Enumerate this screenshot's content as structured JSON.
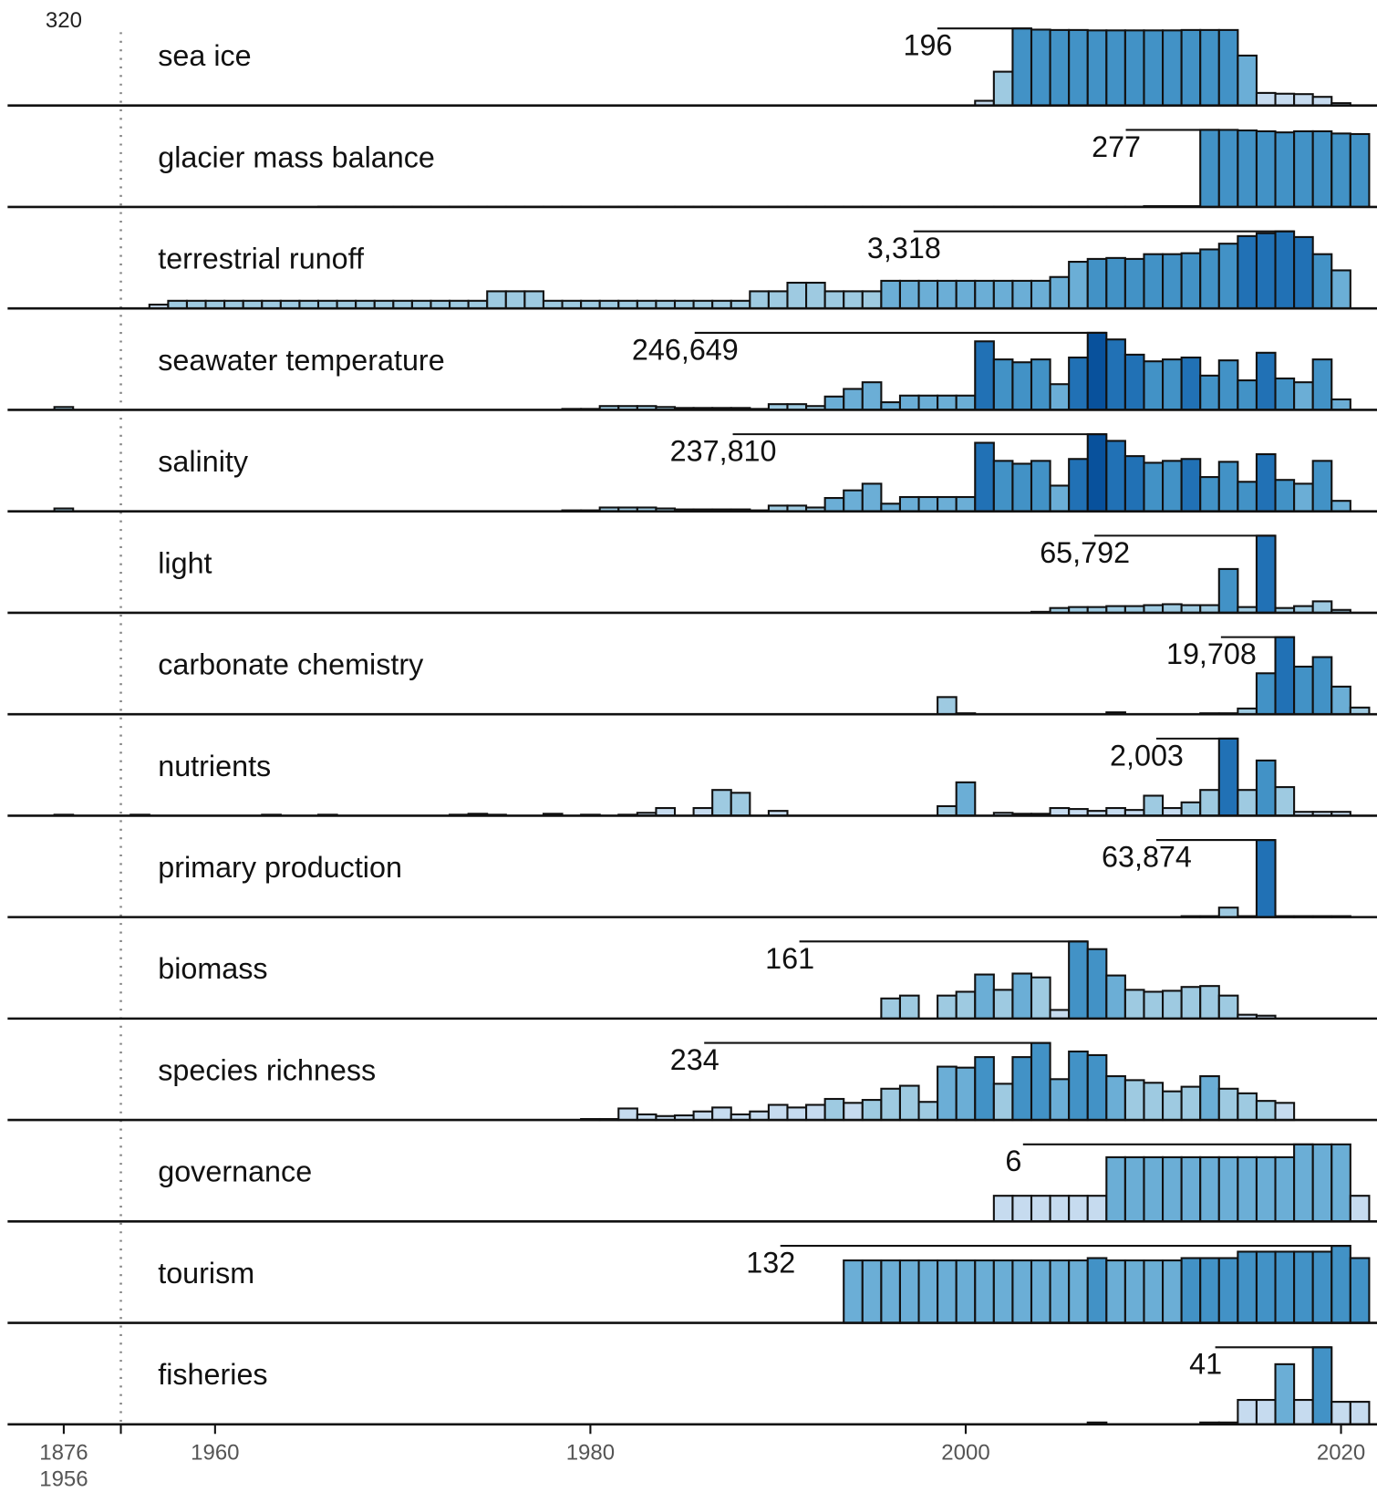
{
  "chart_data": {
    "type": "bar",
    "break_note": 320,
    "break_labels": [
      1876,
      1956
    ],
    "xticks": [
      1960,
      1980,
      2000,
      2020
    ],
    "palette": [
      "#c6dbef",
      "#9ecae1",
      "#6baed6",
      "#4292c6",
      "#2171b5",
      "#08519c",
      "#08306b"
    ],
    "panels": [
      {
        "name": "sea ice",
        "ymax": 196,
        "x": [
          2001,
          2002,
          2003,
          2004,
          2005,
          2006,
          2007,
          2008,
          2009,
          2010,
          2011,
          2012,
          2013,
          2014,
          2015,
          2016,
          2017,
          2018,
          2019,
          2020
        ],
        "values": [
          12,
          86,
          196,
          193,
          192,
          192,
          191,
          191,
          191,
          191,
          191,
          192,
          192,
          192,
          127,
          32,
          30,
          29,
          22,
          6
        ]
      },
      {
        "name": "glacier mass balance",
        "ymax": 277,
        "x": [
          1966,
          1967,
          1968,
          1969,
          1970,
          1971,
          1972,
          1973,
          1974,
          1975,
          1976,
          1977,
          1978,
          1979,
          1980,
          1981,
          1982,
          1983,
          1984,
          1985,
          1986,
          1987,
          1988,
          1989,
          1990,
          1991,
          1992,
          1993,
          1994,
          1995,
          1996,
          1997,
          1998,
          1999,
          2000,
          2001,
          2002,
          2003,
          2004,
          2005,
          2006,
          2007,
          2008,
          2009,
          2010,
          2011,
          2012,
          2013,
          2014,
          2015,
          2016,
          2017,
          2018,
          2019,
          2020,
          2021
        ],
        "values": [
          1,
          1,
          1,
          1,
          1,
          1,
          1,
          1,
          1,
          1,
          1,
          1,
          1,
          1,
          1,
          1,
          1,
          1,
          1,
          1,
          1,
          1,
          1,
          1,
          1,
          1,
          1,
          1,
          1,
          1,
          1,
          1,
          1,
          1,
          1,
          1,
          1,
          1,
          1,
          1,
          1,
          1,
          1,
          1,
          3,
          3,
          3,
          277,
          277,
          275,
          272,
          268,
          272,
          272,
          264,
          262
        ]
      },
      {
        "name": "terrestrial runoff",
        "ymax": {
          "value": 3318,
          "label": "3,318"
        },
        "x": [
          1957,
          1958,
          1959,
          1960,
          1961,
          1962,
          1963,
          1964,
          1965,
          1966,
          1967,
          1968,
          1969,
          1970,
          1971,
          1972,
          1973,
          1974,
          1975,
          1976,
          1977,
          1978,
          1979,
          1980,
          1981,
          1982,
          1983,
          1984,
          1985,
          1986,
          1987,
          1988,
          1989,
          1990,
          1991,
          1992,
          1993,
          1994,
          1995,
          1996,
          1997,
          1998,
          1999,
          2000,
          2001,
          2002,
          2003,
          2004,
          2005,
          2006,
          2007,
          2008,
          2009,
          2010,
          2011,
          2012,
          2013,
          2014,
          2015,
          2016,
          2017,
          2018,
          2019,
          2020
        ],
        "values": [
          164,
          328,
          328,
          328,
          328,
          328,
          328,
          328,
          328,
          328,
          328,
          328,
          328,
          328,
          328,
          328,
          328,
          328,
          737,
          737,
          737,
          328,
          328,
          328,
          328,
          328,
          328,
          328,
          328,
          328,
          328,
          328,
          737,
          737,
          1106,
          1106,
          737,
          737,
          737,
          1188,
          1188,
          1188,
          1188,
          1188,
          1188,
          1188,
          1188,
          1188,
          1352,
          2007,
          2130,
          2171,
          2130,
          2335,
          2335,
          2376,
          2540,
          2786,
          3113,
          3236,
          3318,
          3072,
          2335,
          1638
        ]
      },
      {
        "name": "seawater temperature",
        "ymax": {
          "value": 246649,
          "label": "246,649"
        },
        "x": [
          1876,
          1979,
          1980,
          1981,
          1982,
          1983,
          1984,
          1985,
          1986,
          1987,
          1988,
          1989,
          1990,
          1991,
          1992,
          1993,
          1994,
          1995,
          1996,
          1997,
          1998,
          1999,
          2000,
          2001,
          2002,
          2003,
          2004,
          2005,
          2006,
          2007,
          2008,
          2009,
          2010,
          2011,
          2012,
          2013,
          2014,
          2015,
          2016,
          2017,
          2018,
          2019,
          2020
        ],
        "values": [
          9135,
          3045,
          3045,
          12180,
          12180,
          12180,
          9135,
          6090,
          6090,
          6090,
          6090,
          3045,
          18270,
          18270,
          12180,
          42630,
          66990,
          88305,
          24360,
          45675,
          45675,
          45675,
          45675,
          219240,
          161385,
          152250,
          161385,
          82215,
          167475,
          246649,
          225330,
          176610,
          155295,
          161385,
          167475,
          109620,
          158340,
          94395,
          182700,
          100485,
          88305,
          161385,
          33495
        ]
      },
      {
        "name": "salinity",
        "ymax": {
          "value": 237810,
          "label": "237,810"
        },
        "x": [
          1876,
          1979,
          1980,
          1981,
          1982,
          1983,
          1984,
          1985,
          1986,
          1987,
          1988,
          1989,
          1990,
          1991,
          1992,
          1993,
          1994,
          1995,
          1996,
          1997,
          1998,
          1999,
          2000,
          2001,
          2002,
          2003,
          2004,
          2005,
          2006,
          2007,
          2008,
          2009,
          2010,
          2011,
          2012,
          2013,
          2014,
          2015,
          2016,
          2017,
          2018,
          2019,
          2020
        ],
        "values": [
          8808,
          2936,
          2936,
          11744,
          11744,
          11744,
          8808,
          5872,
          5872,
          5872,
          5872,
          2936,
          17616,
          17616,
          11744,
          41104,
          64592,
          85144,
          23488,
          44040,
          44040,
          44040,
          44040,
          211392,
          155608,
          146800,
          155608,
          79272,
          161480,
          237810,
          217264,
          170288,
          149736,
          155608,
          161480,
          105696,
          152672,
          91016,
          176160,
          96888,
          85144,
          155608,
          32296
        ]
      },
      {
        "name": "light",
        "ymax": {
          "value": 65792,
          "label": "65,792"
        },
        "x": [
          2004,
          2005,
          2006,
          2007,
          2008,
          2009,
          2010,
          2011,
          2012,
          2013,
          2014,
          2015,
          2016,
          2017,
          2018,
          2019,
          2020
        ],
        "values": [
          812,
          4060,
          4872,
          4872,
          5684,
          5684,
          6496,
          7308,
          6496,
          6496,
          37352,
          4872,
          65792,
          4060,
          5684,
          9744,
          2436
        ]
      },
      {
        "name": "carbonate chemistry",
        "ymax": {
          "value": 19708,
          "label": "19,708"
        },
        "x": [
          1999,
          2000,
          2001,
          2002,
          2003,
          2004,
          2005,
          2006,
          2007,
          2008,
          2009,
          2010,
          2011,
          2012,
          2013,
          2014,
          2015,
          2016,
          2017,
          2018,
          2019,
          2020,
          2021
        ],
        "values": [
          4380,
          243,
          0,
          0,
          0,
          0,
          0,
          0,
          0,
          487,
          0,
          0,
          0,
          0,
          243,
          243,
          1460,
          10462,
          19708,
          12165,
          14598,
          7056,
          1703
        ]
      },
      {
        "name": "nutrients",
        "ymax": {
          "value": 2003,
          "label": "2,003"
        },
        "x": [
          1876,
          1956,
          1963,
          1966,
          1973,
          1974,
          1975,
          1978,
          1980,
          1982,
          1983,
          1984,
          1986,
          1987,
          1988,
          1990,
          1999,
          2000,
          2002,
          2003,
          2004,
          2005,
          2006,
          2007,
          2008,
          2009,
          2010,
          2011,
          2012,
          2013,
          2014,
          2015,
          2016,
          2017,
          2018,
          2019,
          2020
        ],
        "values": [
          25,
          25,
          25,
          25,
          25,
          49,
          25,
          49,
          25,
          25,
          74,
          198,
          198,
          668,
          594,
          124,
          247,
          866,
          74,
          49,
          49,
          198,
          173,
          124,
          198,
          148,
          519,
          198,
          346,
          668,
          2003,
          668,
          1434,
          742,
          99,
          99,
          99
        ]
      },
      {
        "name": "primary production",
        "ymax": {
          "value": 63874,
          "label": "63,874"
        },
        "x": [
          2012,
          2013,
          2014,
          2015,
          2016,
          2017,
          2018,
          2019,
          2020
        ],
        "values": [
          789,
          789,
          7886,
          789,
          63874,
          789,
          789,
          789,
          789
        ]
      },
      {
        "name": "biomass",
        "ymax": 161,
        "x": [
          1996,
          1997,
          1998,
          1999,
          2000,
          2001,
          2002,
          2003,
          2004,
          2005,
          2006,
          2007,
          2008,
          2009,
          2010,
          2011,
          2012,
          2013,
          2014,
          2015,
          2016
        ],
        "values": [
          42,
          48,
          0,
          48,
          56,
          92,
          60,
          94,
          86,
          18,
          161,
          145,
          90,
          60,
          56,
          58,
          66,
          68,
          48,
          8,
          6
        ]
      },
      {
        "name": "species richness",
        "ymax": 234,
        "x": [
          1980,
          1981,
          1982,
          1983,
          1984,
          1985,
          1986,
          1987,
          1988,
          1989,
          1990,
          1991,
          1992,
          1993,
          1994,
          1995,
          1996,
          1997,
          1998,
          1999,
          2000,
          2001,
          2002,
          2003,
          2004,
          2005,
          2006,
          2007,
          2008,
          2009,
          2010,
          2011,
          2012,
          2013,
          2014,
          2015,
          2016,
          2017
        ],
        "values": [
          3,
          3,
          35,
          17,
          12,
          14,
          26,
          38,
          17,
          26,
          46,
          38,
          46,
          64,
          52,
          61,
          95,
          104,
          55,
          162,
          159,
          191,
          110,
          191,
          234,
          124,
          208,
          197,
          133,
          121,
          113,
          87,
          101,
          133,
          95,
          81,
          58,
          52
        ]
      },
      {
        "name": "governance",
        "ymax": 6,
        "x": [
          2002,
          2003,
          2004,
          2005,
          2006,
          2007,
          2008,
          2009,
          2010,
          2011,
          2012,
          2013,
          2014,
          2015,
          2016,
          2017,
          2018,
          2019,
          2020,
          2021
        ],
        "values": [
          2,
          2,
          2,
          2,
          2,
          2,
          5,
          5,
          5,
          5,
          5,
          5,
          5,
          5,
          5,
          5,
          6,
          6,
          6,
          2
        ]
      },
      {
        "name": "tourism",
        "ymax": 132,
        "x": [
          1994,
          1995,
          1996,
          1997,
          1998,
          1999,
          2000,
          2001,
          2002,
          2003,
          2004,
          2005,
          2006,
          2007,
          2008,
          2009,
          2010,
          2011,
          2012,
          2013,
          2014,
          2015,
          2016,
          2017,
          2018,
          2019,
          2020,
          2021
        ],
        "values": [
          107,
          107,
          107,
          107,
          107,
          107,
          107,
          107,
          107,
          107,
          107,
          107,
          107,
          111,
          107,
          107,
          107,
          107,
          111,
          111,
          111,
          122,
          122,
          122,
          122,
          122,
          132,
          111
        ]
      },
      {
        "name": "fisheries",
        "ymax": 41,
        "x": [
          2007,
          2013,
          2014,
          2015,
          2016,
          2017,
          2018,
          2019,
          2020,
          2021
        ],
        "values": [
          1,
          1,
          1,
          13,
          13,
          32,
          13,
          41,
          12,
          12
        ]
      }
    ]
  }
}
